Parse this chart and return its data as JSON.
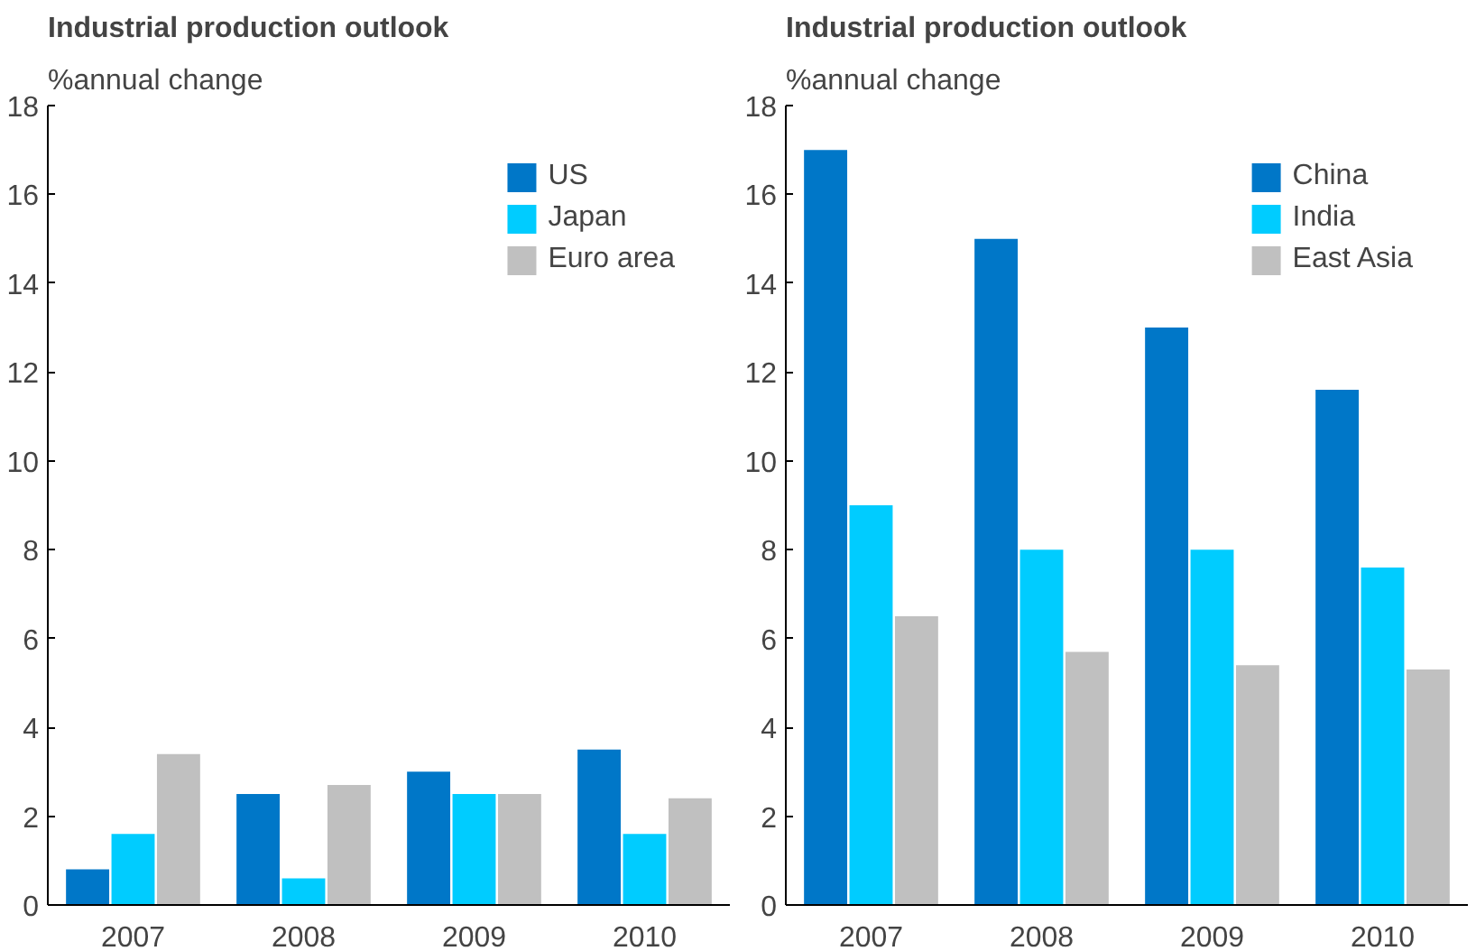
{
  "chart_data": [
    {
      "type": "bar",
      "title": "Industrial production outlook",
      "subtitle": "%annual change",
      "categories": [
        "2007",
        "2008",
        "2009",
        "2010"
      ],
      "ylim": [
        0,
        18
      ],
      "yticks": [
        0,
        2,
        4,
        6,
        8,
        10,
        12,
        14,
        16,
        18
      ],
      "grid": false,
      "legend": "top right",
      "series": [
        {
          "name": "US",
          "color": "#0077c8",
          "values": [
            0.8,
            2.5,
            3.0,
            3.5
          ]
        },
        {
          "name": "Japan",
          "color": "#00ccff",
          "values": [
            1.6,
            0.6,
            2.5,
            1.6
          ]
        },
        {
          "name": "Euro area",
          "color": "#c0c0c0",
          "values": [
            3.4,
            2.7,
            2.5,
            2.4
          ]
        }
      ]
    },
    {
      "type": "bar",
      "title": "Industrial production outlook",
      "subtitle": "%annual change",
      "categories": [
        "2007",
        "2008",
        "2009",
        "2010"
      ],
      "ylim": [
        0,
        18
      ],
      "yticks": [
        0,
        2,
        4,
        6,
        8,
        10,
        12,
        14,
        16,
        18
      ],
      "grid": false,
      "legend": "top right",
      "series": [
        {
          "name": "China",
          "color": "#0077c8",
          "values": [
            17.0,
            15.0,
            13.0,
            11.6
          ]
        },
        {
          "name": "India",
          "color": "#00ccff",
          "values": [
            9.0,
            8.0,
            8.0,
            7.6
          ]
        },
        {
          "name": "East Asia",
          "color": "#c0c0c0",
          "values": [
            6.5,
            5.7,
            5.4,
            5.3
          ]
        }
      ]
    }
  ]
}
